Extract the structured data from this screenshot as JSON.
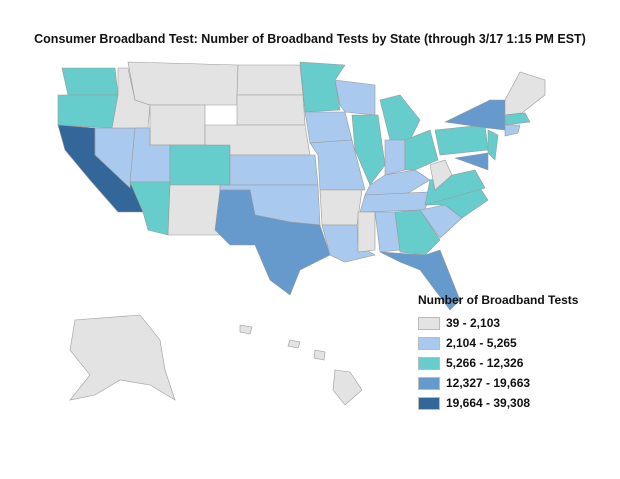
{
  "title": "Consumer Broadband Test:  Number of Broadband Tests by State (through 3/17 1:15 PM  EST)",
  "legend": {
    "title": "Number of Broadband Tests",
    "bins": [
      {
        "label": "39 - 2,103",
        "color": "#e3e3e3"
      },
      {
        "label": "2,104 - 5,265",
        "color": "#a9c9ee"
      },
      {
        "label": "5,266 - 12,326",
        "color": "#66cccc"
      },
      {
        "label": "12,327 - 19,663",
        "color": "#6699cc"
      },
      {
        "label": "19,664 - 39,308",
        "color": "#336699"
      }
    ]
  },
  "states": {
    "WA": 2,
    "OR": 2,
    "CA": 4,
    "NV": 1,
    "ID": 0,
    "MT": 0,
    "WY": 0,
    "UT": 1,
    "CO": 2,
    "AZ": 2,
    "NM": 0,
    "ND": 0,
    "SD": 0,
    "NE": 0,
    "KS": 1,
    "OK": 1,
    "TX": 3,
    "MN": 2,
    "IA": 1,
    "MO": 1,
    "AR": 0,
    "LA": 1,
    "WI": 1,
    "IL": 2,
    "MI": 2,
    "IN": 1,
    "OH": 2,
    "KY": 1,
    "TN": 1,
    "MS": 0,
    "AL": 1,
    "GA": 2,
    "FL": 3,
    "SC": 1,
    "NC": 2,
    "VA": 2,
    "WV": 0,
    "PA": 2,
    "NY": 3,
    "MD": 3,
    "NJ": 2,
    "NNE": 0,
    "MA": 2,
    "CT": 1,
    "AK": 0,
    "HI": 0
  }
}
